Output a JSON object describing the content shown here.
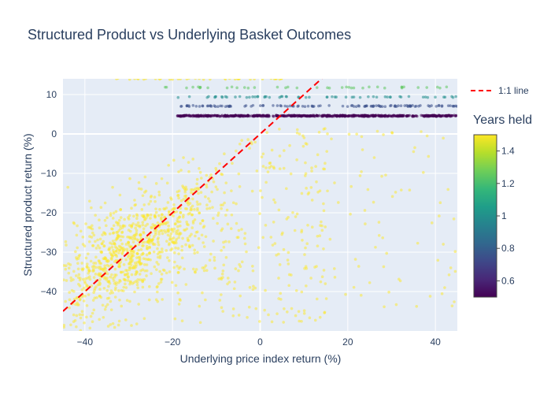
{
  "chart_data": {
    "type": "scatter",
    "title": "Structured Product vs Underlying Basket Outcomes",
    "xlabel": "Underlying price index return (%)",
    "ylabel": "Structured product return (%)",
    "xlim": [
      -45,
      45
    ],
    "ylim": [
      -50,
      14
    ],
    "xticks": [
      -40,
      -20,
      0,
      20,
      40
    ],
    "yticks": [
      -40,
      -30,
      -20,
      -10,
      0,
      10
    ],
    "xtick_labels": [
      "−40",
      "−20",
      "0",
      "20",
      "40"
    ],
    "ytick_labels": [
      "−40",
      "−30",
      "−20",
      "−10",
      "0",
      "10"
    ],
    "grid": true,
    "legend": {
      "placement": "top-right",
      "entries": [
        "1:1 line"
      ]
    },
    "reference_line": {
      "name": "1:1 line",
      "slope": 1,
      "intercept": 0,
      "color": "#ff0000",
      "style": "dashed"
    },
    "colorbar": {
      "title": "Years held",
      "range": [
        0.5,
        1.5
      ],
      "ticks": [
        0.6,
        0.8,
        1,
        1.2,
        1.4
      ],
      "tick_labels": [
        "0.6",
        "0.8",
        "1",
        "1.2",
        "1.4"
      ],
      "colorscale": [
        "#440154",
        "#482878",
        "#3e4989",
        "#31688e",
        "#26828e",
        "#1f9e89",
        "#35b779",
        "#6ece58",
        "#b5de2b",
        "#fde725"
      ]
    },
    "series": [
      {
        "group": "coupon_0.5y",
        "years_held": 0.5,
        "y": 4.6,
        "x_range": [
          -19,
          45
        ],
        "approx_count": 600
      },
      {
        "group": "coupon_0.75y",
        "years_held": 0.75,
        "y": 7.1,
        "x_range": [
          -19,
          45
        ],
        "approx_count": 120
      },
      {
        "group": "coupon_1y",
        "years_held": 1.0,
        "y": 9.4,
        "x_range": [
          -19,
          45
        ],
        "approx_count": 60
      },
      {
        "group": "coupon_1.25y",
        "years_held": 1.25,
        "y": 11.8,
        "x_range": [
          -26,
          45
        ],
        "approx_count": 40
      },
      {
        "group": "coupon_1.5y",
        "years_held": 1.5,
        "y": 14.0,
        "x_range": [
          -34,
          6
        ],
        "approx_count": 40
      },
      {
        "group": "loss_1.5y",
        "years_held": 1.5,
        "relation": "y = x with scatter, capped at ~0",
        "x_range": [
          -45,
          45
        ],
        "y_range": [
          -50,
          2
        ],
        "approx_count": 1300
      }
    ]
  }
}
